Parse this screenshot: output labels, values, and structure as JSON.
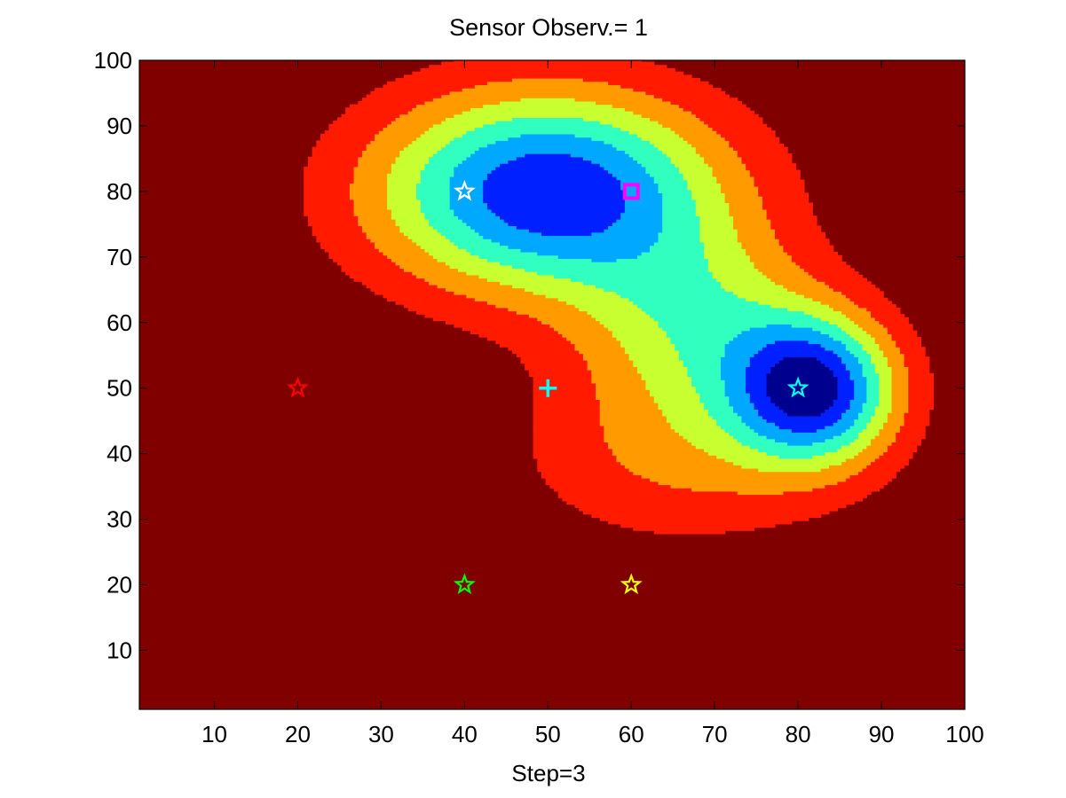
{
  "chart_data": {
    "type": "contour",
    "title": "Sensor  Observ.= 1",
    "xlabel": "Step=3",
    "ylabel": "",
    "xlim": [
      1,
      100
    ],
    "ylim": [
      1,
      100
    ],
    "xticks": [
      10,
      20,
      30,
      40,
      50,
      60,
      70,
      80,
      90,
      100
    ],
    "yticks": [
      10,
      20,
      30,
      40,
      50,
      60,
      70,
      80,
      90,
      100
    ],
    "grid": false,
    "colormap": "jet",
    "levels": 9,
    "field": {
      "base": 1.0,
      "wells": [
        {
          "x": 50,
          "y": 80,
          "sx": 15,
          "sy": 11,
          "depth": 1.0
        },
        {
          "x": 82,
          "y": 50,
          "sx": 7,
          "sy": 8,
          "depth": 0.95
        },
        {
          "x": 68,
          "y": 60,
          "sx": 10,
          "sy": 10,
          "depth": 0.45
        },
        {
          "x": 66,
          "y": 40,
          "sx": 14,
          "sy": 10,
          "depth": 0.3
        }
      ]
    },
    "fill_colors": [
      "#00008f",
      "#0020ff",
      "#00a8ff",
      "#30ffc0",
      "#c8ff30",
      "#ff9a00",
      "#ff1a00",
      "#800000"
    ],
    "markers": [
      {
        "name": "white-star",
        "shape": "star",
        "x": 40,
        "y": 80,
        "color": "#ffffff"
      },
      {
        "name": "magenta-square",
        "shape": "square",
        "x": 60,
        "y": 80,
        "color": "#ff00ff"
      },
      {
        "name": "cyan-star",
        "shape": "star",
        "x": 80,
        "y": 50,
        "color": "#00ffff"
      },
      {
        "name": "cyan-plus",
        "shape": "plus",
        "x": 50,
        "y": 50,
        "color": "#00ffff"
      },
      {
        "name": "red-star",
        "shape": "star",
        "x": 20,
        "y": 50,
        "color": "#ff0000"
      },
      {
        "name": "green-star",
        "shape": "star",
        "x": 40,
        "y": 20,
        "color": "#00ff00"
      },
      {
        "name": "yellow-star",
        "shape": "star",
        "x": 60,
        "y": 20,
        "color": "#ffff00"
      }
    ]
  }
}
